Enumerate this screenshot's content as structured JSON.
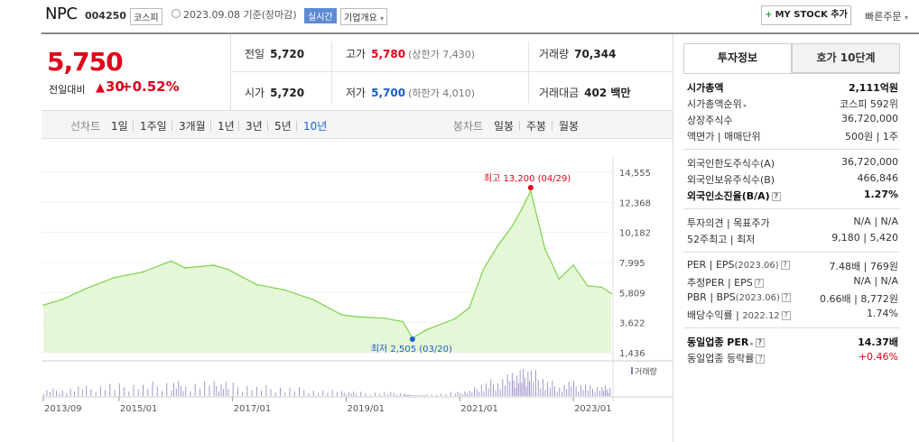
{
  "header": {
    "name": "NPC",
    "code": "004250",
    "market": "코스피",
    "asof": "2023.09.08 기준(장마감)",
    "realtime": "실시간",
    "company_info": "기업개요",
    "mystock": "MY STOCK 추가",
    "quick_order": "빠른주문"
  },
  "price": {
    "current": "5,750",
    "change_label": "전일대비",
    "change": "30",
    "change_pct": "+0.52%"
  },
  "quote": {
    "prev_label": "전일",
    "prev": "5,720",
    "high_label": "고가",
    "high": "5,780",
    "upper_limit": "(상한가 7,430)",
    "volume_label": "거래량",
    "volume": "70,344",
    "open_label": "시가",
    "open": "5,720",
    "low_label": "저가",
    "low": "5,700",
    "lower_limit": "(하한가 4,010)",
    "amount_label": "거래대금",
    "amount": "402 백만"
  },
  "chart_tabs": {
    "line_label": "선차트",
    "periods": [
      "1일",
      "1주일",
      "3개월",
      "1년",
      "3년",
      "5년",
      "10년"
    ],
    "candle_label": "봉차트",
    "candles": [
      "일봉",
      "주봉",
      "월봉"
    ]
  },
  "chart_data": {
    "type": "area",
    "color": "#7cd14a",
    "yticks": [
      "14,555",
      "12,368",
      "10,182",
      "7,995",
      "5,809",
      "3,622",
      "1,436"
    ],
    "ylim": [
      1436,
      14555
    ],
    "xticks": [
      "2013/09",
      "2015/01",
      "2017/01",
      "2019/01",
      "2021/01",
      "2023/01"
    ],
    "x": [
      "2013/09",
      "2014/01",
      "2014/06",
      "2014/12",
      "2015/06",
      "2015/12",
      "2016/03",
      "2016/09",
      "2016/12",
      "2017/06",
      "2017/12",
      "2018/06",
      "2018/12",
      "2019/03",
      "2019/09",
      "2020/01",
      "2020/03",
      "2020/06",
      "2020/12",
      "2021/03",
      "2021/06",
      "2021/09",
      "2021/12",
      "2022/02",
      "2022/04",
      "2022/07",
      "2022/10",
      "2023/01",
      "2023/04",
      "2023/07",
      "2023/09"
    ],
    "values": [
      4900,
      5300,
      6100,
      6900,
      7300,
      8100,
      7600,
      7800,
      7500,
      6400,
      6000,
      5300,
      4200,
      4050,
      3950,
      3700,
      2505,
      3100,
      3900,
      4700,
      7500,
      9200,
      10600,
      11800,
      13200,
      9000,
      6800,
      7800,
      6300,
      6200,
      5750
    ],
    "high_annotation": "최고 13,200 (04/29)",
    "low_annotation": "최저 2,505 (03/20)",
    "volume_legend": "거래량"
  },
  "side": {
    "tab_active": "투자정보",
    "tab_other": "호가 10단계",
    "market_cap_label": "시가총액",
    "market_cap": "2,111억원",
    "rank_label": "시가총액순위",
    "rank": "코스피 592위",
    "shares_label": "상장주식수",
    "shares": "36,720,000",
    "par_label": "액면가",
    "unit_label": "매매단위",
    "par": "500원",
    "unit": "1주",
    "foreign_limit_label": "외국인한도주식수(A)",
    "foreign_limit": "36,720,000",
    "foreign_hold_label": "외국인보유주식수(B)",
    "foreign_hold": "466,846",
    "foreign_rate_label": "외국인소진율(B/A)",
    "foreign_rate": "1.27%",
    "opinion_label": "투자의견",
    "target_label": "목표주가",
    "opinion": "N/A",
    "target": "N/A",
    "w52_high_label": "52주최고",
    "w52_low_label": "최저",
    "w52_high": "9,180",
    "w52_low": "5,420",
    "per_label": "PER",
    "eps_label": "EPS",
    "eps_period": "(2023.06)",
    "per": "7.48배",
    "eps": "769원",
    "est_per_label": "추정PER",
    "est_eps_label": "EPS",
    "est_per": "N/A",
    "est_eps": "N/A",
    "pbr_label": "PBR",
    "bps_label": "BPS",
    "bps_period": "(2023.06)",
    "pbr": "0.66배",
    "bps": "8,772원",
    "div_label": "배당수익률",
    "div_period": "2022.12",
    "div": "1.74%",
    "sector_per_label": "동일업종 PER",
    "sector_per": "14.37배",
    "sector_change_label": "동일업종 등락률",
    "sector_change": "+0.46%"
  }
}
